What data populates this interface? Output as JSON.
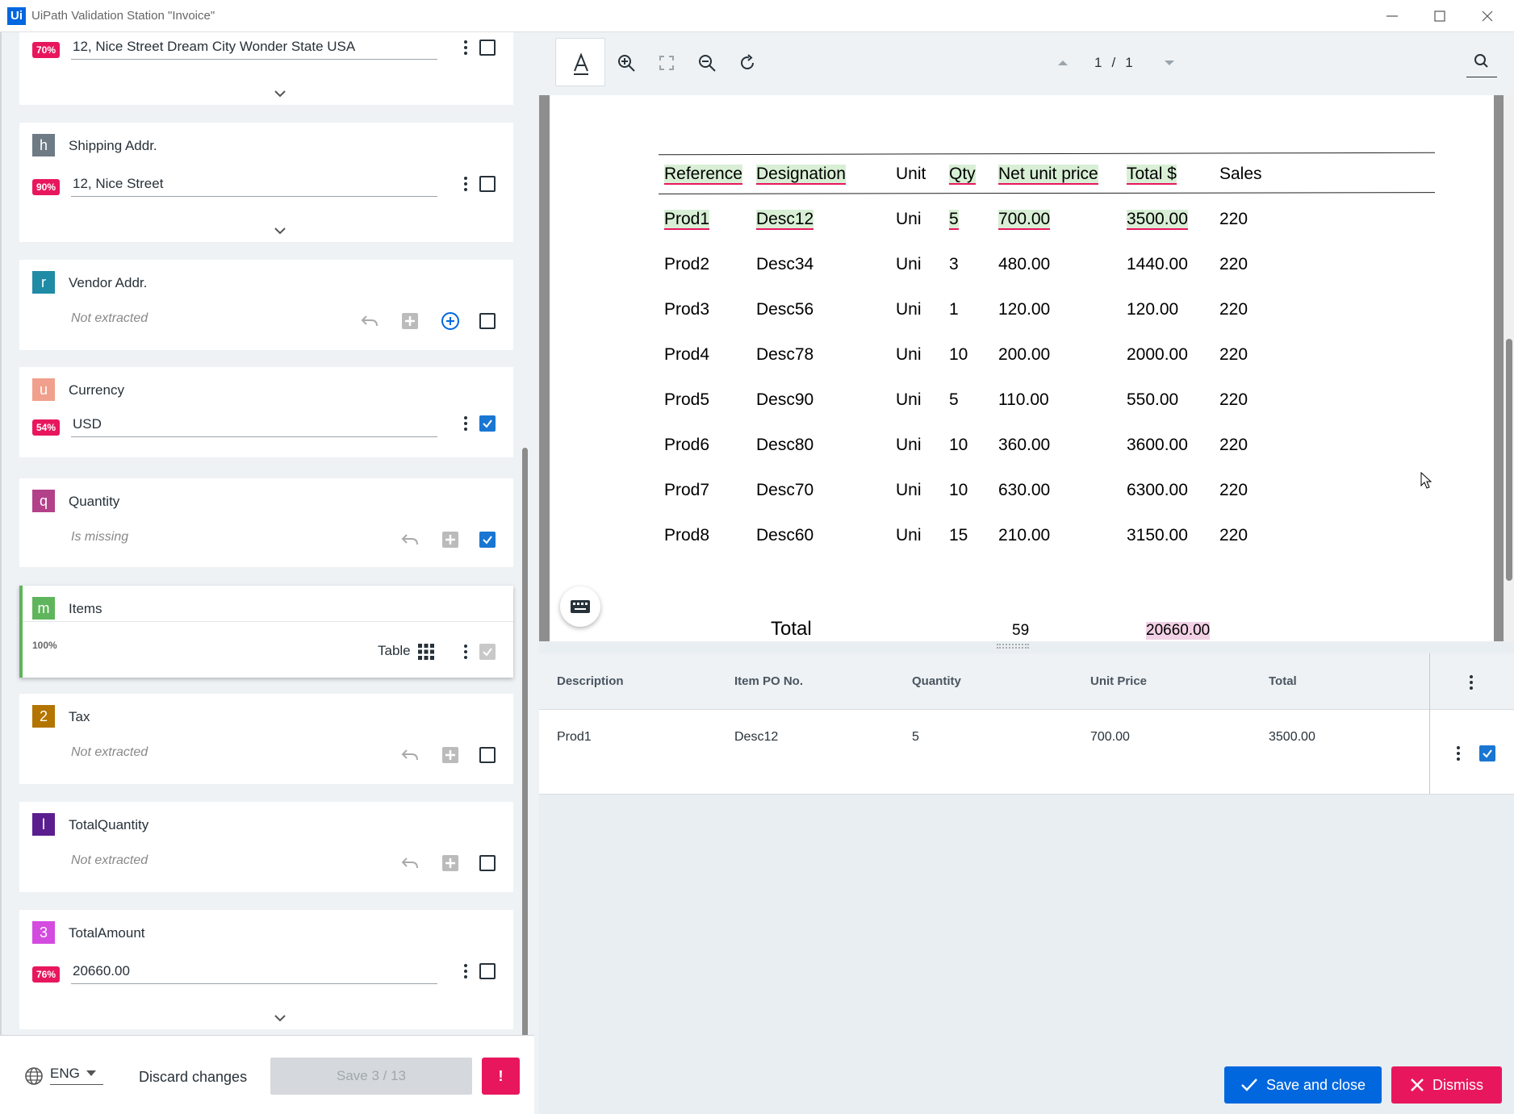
{
  "window": {
    "title": "UiPath Validation Station \"Invoice\"",
    "logo": "Ui"
  },
  "fields": [
    {
      "id": "billing",
      "confidence": "70%",
      "value": "12, Nice Street Dream City Wonder State USA"
    },
    {
      "id": "shipping",
      "badge": "h",
      "badge_color": "#6e7a84",
      "label": "Shipping Addr.",
      "confidence": "90%",
      "value": "12, Nice Street"
    },
    {
      "id": "vendor",
      "badge": "r",
      "badge_color": "#1f8ba5",
      "label": "Vendor Addr.",
      "status": "Not extracted"
    },
    {
      "id": "currency",
      "badge": "u",
      "badge_color": "#f0a08c",
      "label": "Currency",
      "confidence": "54%",
      "value": "USD"
    },
    {
      "id": "quantity",
      "badge": "q",
      "badge_color": "#b3418a",
      "label": "Quantity",
      "status": "Is missing"
    },
    {
      "id": "items",
      "badge": "m",
      "badge_color": "#5fb55c",
      "label": "Items",
      "confidence": "100%",
      "type_label": "Table"
    },
    {
      "id": "tax",
      "badge": "2",
      "badge_color": "#b37400",
      "label": "Tax",
      "status": "Not extracted"
    },
    {
      "id": "totalquantity",
      "badge": "l",
      "badge_color": "#5a1e8f",
      "label": "TotalQuantity",
      "status": "Not extracted"
    },
    {
      "id": "totalamount",
      "badge": "3",
      "badge_color": "#d44be0",
      "label": "TotalAmount",
      "confidence": "76%",
      "value": "20660.00"
    }
  ],
  "footer": {
    "language": "ENG",
    "discard_label": "Discard changes",
    "save_label": "Save 3 / 13",
    "alert_label": "!"
  },
  "viewer": {
    "page_current": "1",
    "page_sep": "/",
    "page_total": "1",
    "doc_table": {
      "headers": [
        "Reference",
        "Designation",
        "Unit",
        "Qty",
        "Net unit price",
        "Total $",
        "Sales"
      ],
      "rows": [
        [
          "Prod1",
          "Desc12",
          "Uni",
          "5",
          "700.00",
          "3500.00",
          "220"
        ],
        [
          "Prod2",
          "Desc34",
          "Uni",
          "3",
          "480.00",
          "1440.00",
          "220"
        ],
        [
          "Prod3",
          "Desc56",
          "Uni",
          "1",
          "120.00",
          "120.00",
          "220"
        ],
        [
          "Prod4",
          "Desc78",
          "Uni",
          "10",
          "200.00",
          "2000.00",
          "220"
        ],
        [
          "Prod5",
          "Desc90",
          "Uni",
          "5",
          "110.00",
          "550.00",
          "220"
        ],
        [
          "Prod6",
          "Desc80",
          "Uni",
          "10",
          "360.00",
          "3600.00",
          "220"
        ],
        [
          "Prod7",
          "Desc70",
          "Uni",
          "10",
          "630.00",
          "6300.00",
          "220"
        ],
        [
          "Prod8",
          "Desc60",
          "Uni",
          "15",
          "210.00",
          "3150.00",
          "220"
        ]
      ],
      "total_label": "Total",
      "total_qty": "59",
      "total_amount": "20660.00"
    }
  },
  "items_grid": {
    "headers": [
      "Description",
      "Item PO No.",
      "Quantity",
      "Unit Price",
      "Total"
    ],
    "rows": [
      [
        "Prod1",
        "Desc12",
        "5",
        "700.00",
        "3500.00"
      ]
    ]
  },
  "actions": {
    "save_close_label": "Save and close",
    "dismiss_label": "Dismiss"
  },
  "colors": {
    "accent": "#0067df",
    "danger": "#e8175d",
    "check": "#1976d2"
  }
}
